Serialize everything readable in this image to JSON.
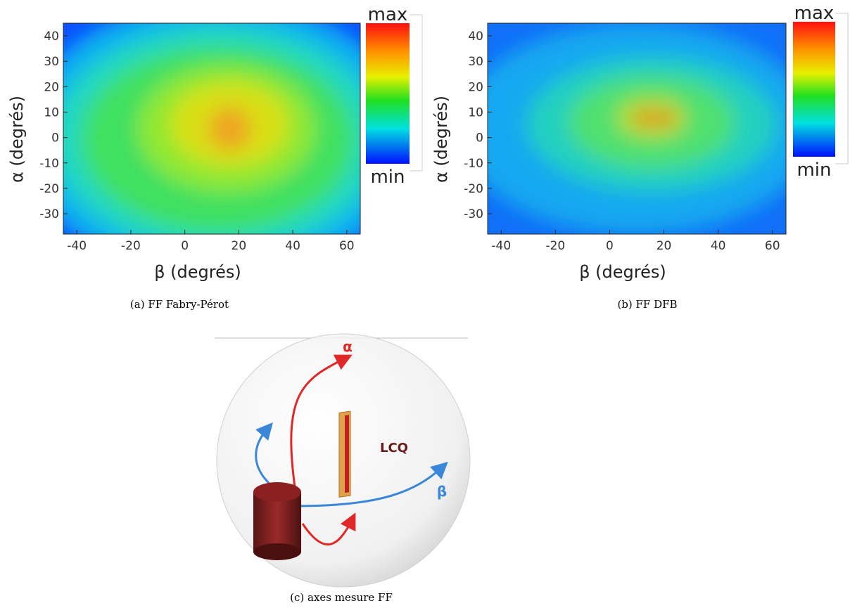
{
  "chart_data": [
    {
      "type": "heatmap",
      "xlabel": "β  (degrés)",
      "ylabel": "α  (degrés)",
      "xlim": [
        -45,
        65
      ],
      "ylim": [
        -38,
        45
      ],
      "xticks": [
        -40,
        -20,
        0,
        20,
        40,
        60
      ],
      "yticks": [
        -30,
        -20,
        -10,
        0,
        10,
        20,
        30,
        40
      ],
      "colorbar": {
        "max_label": "max",
        "min_label": "min"
      },
      "caption": "(a)  FF Fabry-Pérot"
    },
    {
      "type": "heatmap",
      "xlabel": "β  (degrés)",
      "ylabel": "α  (degrés)",
      "xlim": [
        -45,
        65
      ],
      "ylim": [
        -38,
        45
      ],
      "xticks": [
        -40,
        -20,
        0,
        20,
        40,
        60
      ],
      "yticks": [
        -30,
        -20,
        -10,
        0,
        10,
        20,
        30,
        40
      ],
      "colorbar": {
        "max_label": "max",
        "min_label": "min"
      },
      "caption": "(b)  FF DFB"
    }
  ],
  "diagram": {
    "alpha_label": "α",
    "beta_label": "β",
    "device_label": "LCQ",
    "caption": "(c)  axes mesure FF"
  }
}
